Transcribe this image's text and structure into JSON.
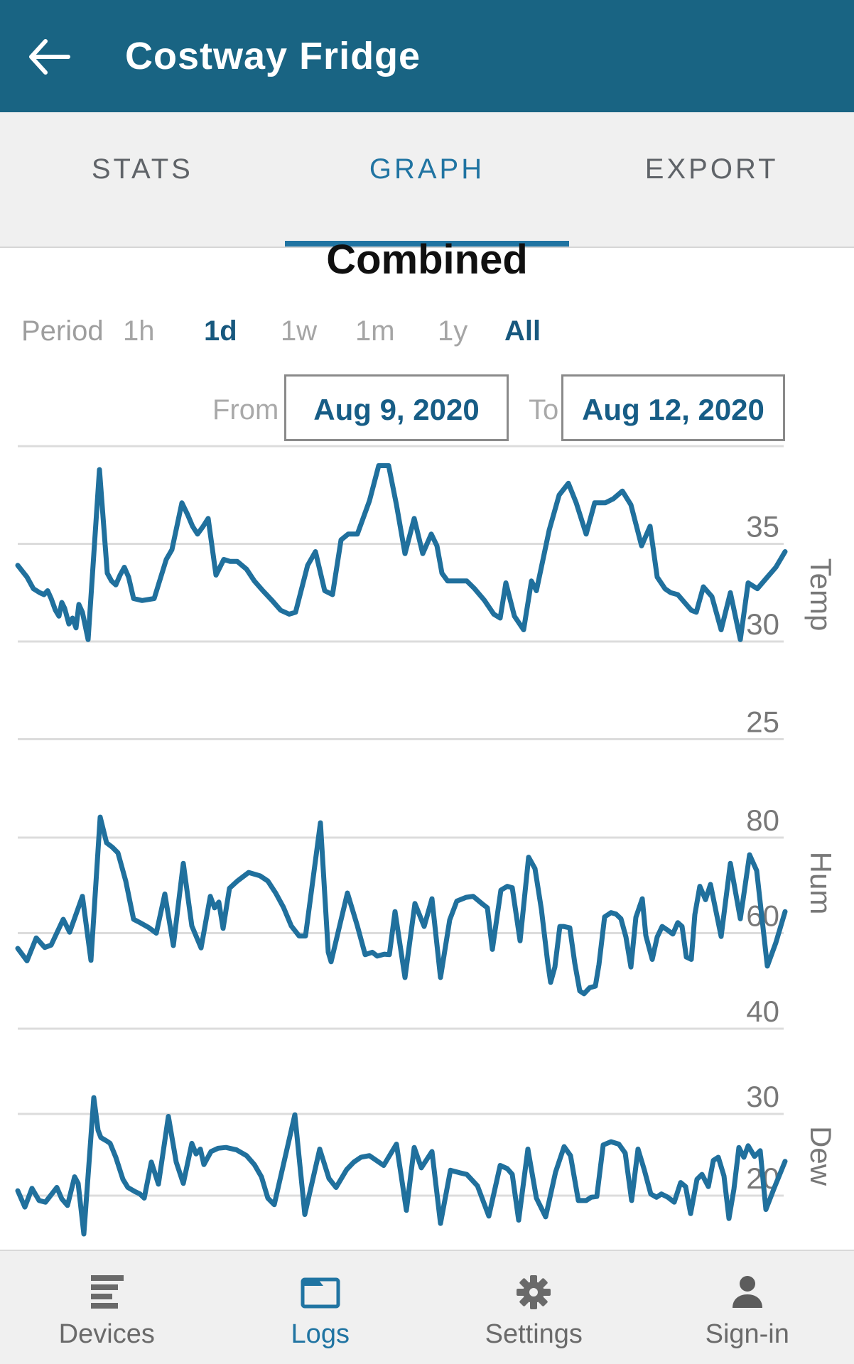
{
  "header": {
    "title": "Costway Fridge",
    "back_icon": "back-arrow"
  },
  "tabs": [
    {
      "label": "STATS",
      "active": false
    },
    {
      "label": "GRAPH",
      "active": true
    },
    {
      "label": "EXPORT",
      "active": false
    }
  ],
  "graph": {
    "title": "Combined"
  },
  "period": {
    "caption": "Period",
    "options": [
      {
        "label": "1h",
        "active": false
      },
      {
        "label": "1d",
        "active": true
      },
      {
        "label": "1w",
        "active": false
      },
      {
        "label": "1m",
        "active": false
      },
      {
        "label": "1y",
        "active": false
      },
      {
        "label": "All",
        "active": true
      }
    ]
  },
  "date_range": {
    "from_label": "From",
    "from_value": "Aug 9, 2020",
    "to_label": "To",
    "to_value": "Aug 12, 2020"
  },
  "colors": {
    "header_bg": "#196483",
    "accent_blue": "#2074a2",
    "line_blue": "#20709d",
    "grid_gray": "#dcdcdc",
    "axis_gray": "#787878",
    "active_text": "#17587e"
  },
  "chart_data": [
    {
      "type": "line",
      "name": "Temp",
      "axis_label": "Temp",
      "x_axis_range": [
        "Aug 9, 2020",
        "Aug 12, 2020"
      ],
      "grid": true,
      "gridlines": [
        {
          "value": 40,
          "label": ""
        },
        {
          "value": 35,
          "label": "35"
        },
        {
          "value": 30,
          "label": "30"
        },
        {
          "value": 25,
          "label": "25"
        }
      ],
      "ylim": [
        25,
        40
      ],
      "points": [
        [
          0,
          33.9
        ],
        [
          13,
          33.3
        ],
        [
          22,
          32.7
        ],
        [
          31,
          32.5
        ],
        [
          37,
          32.4
        ],
        [
          42,
          32.6
        ],
        [
          47,
          32.2
        ],
        [
          53,
          31.6
        ],
        [
          58,
          31.3
        ],
        [
          62,
          32.0
        ],
        [
          66,
          31.7
        ],
        [
          72,
          30.9
        ],
        [
          77,
          31.2
        ],
        [
          82,
          30.7
        ],
        [
          86,
          31.9
        ],
        [
          91,
          31.5
        ],
        [
          99,
          30.1
        ],
        [
          115,
          38.8
        ],
        [
          126,
          33.5
        ],
        [
          132,
          33.1
        ],
        [
          138,
          32.9
        ],
        [
          144,
          33.4
        ],
        [
          150,
          33.8
        ],
        [
          156,
          33.3
        ],
        [
          163,
          32.2
        ],
        [
          175,
          32.1
        ],
        [
          192,
          32.2
        ],
        [
          209,
          34.2
        ],
        [
          217,
          34.7
        ],
        [
          231,
          37.1
        ],
        [
          239,
          36.5
        ],
        [
          246,
          35.9
        ],
        [
          253,
          35.5
        ],
        [
          261,
          35.9
        ],
        [
          268,
          36.3
        ],
        [
          279,
          33.4
        ],
        [
          290,
          34.2
        ],
        [
          299,
          34.1
        ],
        [
          309,
          34.1
        ],
        [
          322,
          33.7
        ],
        [
          333,
          33.1
        ],
        [
          345,
          32.6
        ],
        [
          358,
          32.1
        ],
        [
          370,
          31.6
        ],
        [
          382,
          31.4
        ],
        [
          391,
          31.5
        ],
        [
          408,
          33.9
        ],
        [
          419,
          34.6
        ],
        [
          432,
          32.6
        ],
        [
          443,
          32.4
        ],
        [
          455,
          35.2
        ],
        [
          465,
          35.5
        ],
        [
          478,
          35.5
        ],
        [
          495,
          37.2
        ],
        [
          508,
          39.0
        ],
        [
          522,
          39.0
        ],
        [
          533,
          37.0
        ],
        [
          545,
          34.5
        ],
        [
          558,
          36.3
        ],
        [
          570,
          34.5
        ],
        [
          582,
          35.5
        ],
        [
          590,
          34.9
        ],
        [
          597,
          33.5
        ],
        [
          605,
          33.1
        ],
        [
          632,
          33.1
        ],
        [
          643,
          32.7
        ],
        [
          657,
          32.1
        ],
        [
          670,
          31.4
        ],
        [
          679,
          31.2
        ],
        [
          687,
          33.0
        ],
        [
          699,
          31.3
        ],
        [
          712,
          30.6
        ],
        [
          723,
          33.1
        ],
        [
          730,
          32.6
        ],
        [
          748,
          35.7
        ],
        [
          762,
          37.5
        ],
        [
          775,
          38.1
        ],
        [
          786,
          37.1
        ],
        [
          800,
          35.5
        ],
        [
          812,
          37.1
        ],
        [
          827,
          37.1
        ],
        [
          838,
          37.3
        ],
        [
          851,
          37.7
        ],
        [
          863,
          37.0
        ],
        [
          878,
          34.9
        ],
        [
          890,
          35.9
        ],
        [
          900,
          33.3
        ],
        [
          911,
          32.7
        ],
        [
          919,
          32.5
        ],
        [
          929,
          32.4
        ],
        [
          948,
          31.6
        ],
        [
          955,
          31.5
        ],
        [
          965,
          32.8
        ],
        [
          977,
          32.3
        ],
        [
          990,
          30.6
        ],
        [
          1003,
          32.5
        ],
        [
          1017,
          30.1
        ],
        [
          1028,
          33.0
        ],
        [
          1041,
          32.7
        ],
        [
          1055,
          33.3
        ],
        [
          1067,
          33.8
        ],
        [
          1080,
          34.6
        ]
      ]
    },
    {
      "type": "line",
      "name": "Hum",
      "axis_label": "Hum",
      "x_axis_range": [
        "Aug 9, 2020",
        "Aug 12, 2020"
      ],
      "grid": true,
      "gridlines": [
        {
          "value": 80,
          "label": "80"
        },
        {
          "value": 60,
          "label": "60"
        },
        {
          "value": 40,
          "label": "40"
        }
      ],
      "ylim": [
        40,
        80
      ],
      "points": [
        [
          0,
          56.8
        ],
        [
          13,
          54.2
        ],
        [
          26,
          59.0
        ],
        [
          38,
          57.0
        ],
        [
          47,
          57.5
        ],
        [
          64,
          62.9
        ],
        [
          73,
          60.2
        ],
        [
          91,
          67.7
        ],
        [
          103,
          54.3
        ],
        [
          116,
          84.3
        ],
        [
          125,
          78.9
        ],
        [
          133,
          78.0
        ],
        [
          141,
          76.8
        ],
        [
          152,
          70.9
        ],
        [
          163,
          62.9
        ],
        [
          172,
          62.2
        ],
        [
          184,
          61.2
        ],
        [
          195,
          60.0
        ],
        [
          207,
          68.2
        ],
        [
          219,
          57.4
        ],
        [
          233,
          74.6
        ],
        [
          245,
          61.5
        ],
        [
          258,
          56.9
        ],
        [
          271,
          67.7
        ],
        [
          277,
          65.3
        ],
        [
          283,
          66.5
        ],
        [
          289,
          61.0
        ],
        [
          298,
          69.4
        ],
        [
          309,
          70.9
        ],
        [
          325,
          72.7
        ],
        [
          341,
          72.0
        ],
        [
          352,
          70.9
        ],
        [
          363,
          68.4
        ],
        [
          374,
          65.4
        ],
        [
          385,
          61.5
        ],
        [
          396,
          59.4
        ],
        [
          405,
          59.4
        ],
        [
          426,
          83.1
        ],
        [
          437,
          56.0
        ],
        [
          441,
          54.0
        ],
        [
          464,
          68.4
        ],
        [
          478,
          61.5
        ],
        [
          489,
          55.5
        ],
        [
          499,
          56.0
        ],
        [
          506,
          55.2
        ],
        [
          516,
          55.6
        ],
        [
          523,
          55.5
        ],
        [
          531,
          64.5
        ],
        [
          545,
          50.7
        ],
        [
          559,
          66.2
        ],
        [
          572,
          61.4
        ],
        [
          583,
          67.2
        ],
        [
          595,
          50.7
        ],
        [
          608,
          62.8
        ],
        [
          618,
          66.7
        ],
        [
          631,
          67.5
        ],
        [
          641,
          67.7
        ],
        [
          654,
          66.1
        ],
        [
          661,
          65.3
        ],
        [
          668,
          56.6
        ],
        [
          680,
          69.0
        ],
        [
          689,
          69.8
        ],
        [
          696,
          69.5
        ],
        [
          707,
          58.4
        ],
        [
          719,
          75.9
        ],
        [
          728,
          73.5
        ],
        [
          737,
          65.0
        ],
        [
          746,
          53.7
        ],
        [
          750,
          49.7
        ],
        [
          756,
          52.9
        ],
        [
          763,
          61.4
        ],
        [
          768,
          61.4
        ],
        [
          777,
          61.1
        ],
        [
          784,
          53.7
        ],
        [
          791,
          47.9
        ],
        [
          797,
          47.3
        ],
        [
          805,
          48.6
        ],
        [
          813,
          48.9
        ],
        [
          818,
          53.4
        ],
        [
          826,
          63.4
        ],
        [
          835,
          64.3
        ],
        [
          842,
          64.0
        ],
        [
          849,
          63.0
        ],
        [
          856,
          59.2
        ],
        [
          863,
          52.9
        ],
        [
          870,
          63.3
        ],
        [
          879,
          67.2
        ],
        [
          884,
          59.5
        ],
        [
          893,
          54.5
        ],
        [
          900,
          59.2
        ],
        [
          907,
          61.4
        ],
        [
          915,
          60.6
        ],
        [
          922,
          59.8
        ],
        [
          929,
          62.2
        ],
        [
          935,
          61.4
        ],
        [
          941,
          55.0
        ],
        [
          948,
          54.5
        ],
        [
          953,
          63.9
        ],
        [
          960,
          69.8
        ],
        [
          968,
          67.0
        ],
        [
          975,
          70.2
        ],
        [
          990,
          59.3
        ],
        [
          1003,
          74.6
        ],
        [
          1017,
          63.0
        ],
        [
          1030,
          76.4
        ],
        [
          1040,
          73.1
        ],
        [
          1055,
          53.1
        ],
        [
          1067,
          58.0
        ],
        [
          1080,
          64.5
        ]
      ]
    },
    {
      "type": "line",
      "name": "Dew",
      "axis_label": "Dew",
      "x_axis_range": [
        "Aug 9, 2020",
        "Aug 12, 2020"
      ],
      "grid": true,
      "gridlines": [
        {
          "value": 30,
          "label": "30"
        },
        {
          "value": 20,
          "label": "20"
        }
      ],
      "ylim": [
        14,
        32
      ],
      "points": [
        [
          0,
          20.6
        ],
        [
          10,
          18.6
        ],
        [
          20,
          20.9
        ],
        [
          30,
          19.4
        ],
        [
          39,
          19.2
        ],
        [
          55,
          21.0
        ],
        [
          62,
          19.6
        ],
        [
          70,
          18.8
        ],
        [
          80,
          22.3
        ],
        [
          85,
          21.5
        ],
        [
          93,
          15.3
        ],
        [
          107,
          32.0
        ],
        [
          113,
          28.0
        ],
        [
          117,
          27.1
        ],
        [
          125,
          26.7
        ],
        [
          130,
          26.4
        ],
        [
          138,
          24.7
        ],
        [
          148,
          22.0
        ],
        [
          155,
          21.0
        ],
        [
          165,
          20.5
        ],
        [
          172,
          20.2
        ],
        [
          178,
          19.7
        ],
        [
          188,
          24.1
        ],
        [
          198,
          21.4
        ],
        [
          212,
          29.7
        ],
        [
          223,
          24.1
        ],
        [
          233,
          21.5
        ],
        [
          245,
          26.4
        ],
        [
          251,
          25.1
        ],
        [
          257,
          25.7
        ],
        [
          262,
          23.8
        ],
        [
          272,
          25.4
        ],
        [
          282,
          25.8
        ],
        [
          293,
          25.9
        ],
        [
          308,
          25.6
        ],
        [
          322,
          24.9
        ],
        [
          333,
          23.8
        ],
        [
          343,
          22.3
        ],
        [
          352,
          19.7
        ],
        [
          361,
          18.9
        ],
        [
          390,
          29.9
        ],
        [
          402,
          19.5
        ],
        [
          404,
          17.7
        ],
        [
          425,
          25.7
        ],
        [
          438,
          22.1
        ],
        [
          448,
          21.0
        ],
        [
          463,
          23.2
        ],
        [
          473,
          24.1
        ],
        [
          483,
          24.7
        ],
        [
          495,
          24.9
        ],
        [
          515,
          23.7
        ],
        [
          533,
          26.3
        ],
        [
          547,
          18.2
        ],
        [
          558,
          25.9
        ],
        [
          568,
          23.4
        ],
        [
          583,
          25.4
        ],
        [
          595,
          16.6
        ],
        [
          609,
          23.1
        ],
        [
          622,
          22.8
        ],
        [
          632,
          22.6
        ],
        [
          647,
          21.2
        ],
        [
          663,
          17.5
        ],
        [
          679,
          23.7
        ],
        [
          689,
          23.3
        ],
        [
          696,
          22.6
        ],
        [
          705,
          17.0
        ],
        [
          718,
          25.7
        ],
        [
          730,
          19.7
        ],
        [
          743,
          17.4
        ],
        [
          757,
          22.9
        ],
        [
          769,
          26.0
        ],
        [
          778,
          24.9
        ],
        [
          789,
          19.4
        ],
        [
          800,
          19.4
        ],
        [
          807,
          19.8
        ],
        [
          815,
          19.9
        ],
        [
          824,
          26.2
        ],
        [
          835,
          26.6
        ],
        [
          846,
          26.3
        ],
        [
          855,
          25.2
        ],
        [
          864,
          19.4
        ],
        [
          873,
          25.7
        ],
        [
          882,
          23.1
        ],
        [
          891,
          20.2
        ],
        [
          899,
          19.8
        ],
        [
          906,
          20.2
        ],
        [
          915,
          19.8
        ],
        [
          924,
          19.2
        ],
        [
          933,
          21.6
        ],
        [
          940,
          21.1
        ],
        [
          947,
          17.8
        ],
        [
          956,
          22.0
        ],
        [
          963,
          22.6
        ],
        [
          972,
          21.1
        ],
        [
          979,
          24.3
        ],
        [
          986,
          24.7
        ],
        [
          994,
          22.4
        ],
        [
          1001,
          17.2
        ],
        [
          1008,
          20.8
        ],
        [
          1015,
          25.9
        ],
        [
          1022,
          24.7
        ],
        [
          1028,
          26.1
        ],
        [
          1037,
          24.8
        ],
        [
          1045,
          25.5
        ],
        [
          1053,
          18.3
        ],
        [
          1065,
          21.0
        ],
        [
          1080,
          24.2
        ]
      ]
    }
  ],
  "bottom_nav": {
    "items": [
      {
        "label": "Devices",
        "icon": "devices-list-icon",
        "active": false
      },
      {
        "label": "Logs",
        "icon": "folder-icon",
        "active": true
      },
      {
        "label": "Settings",
        "icon": "gear-icon",
        "active": false
      },
      {
        "label": "Sign-in",
        "icon": "person-icon",
        "active": false
      }
    ]
  }
}
